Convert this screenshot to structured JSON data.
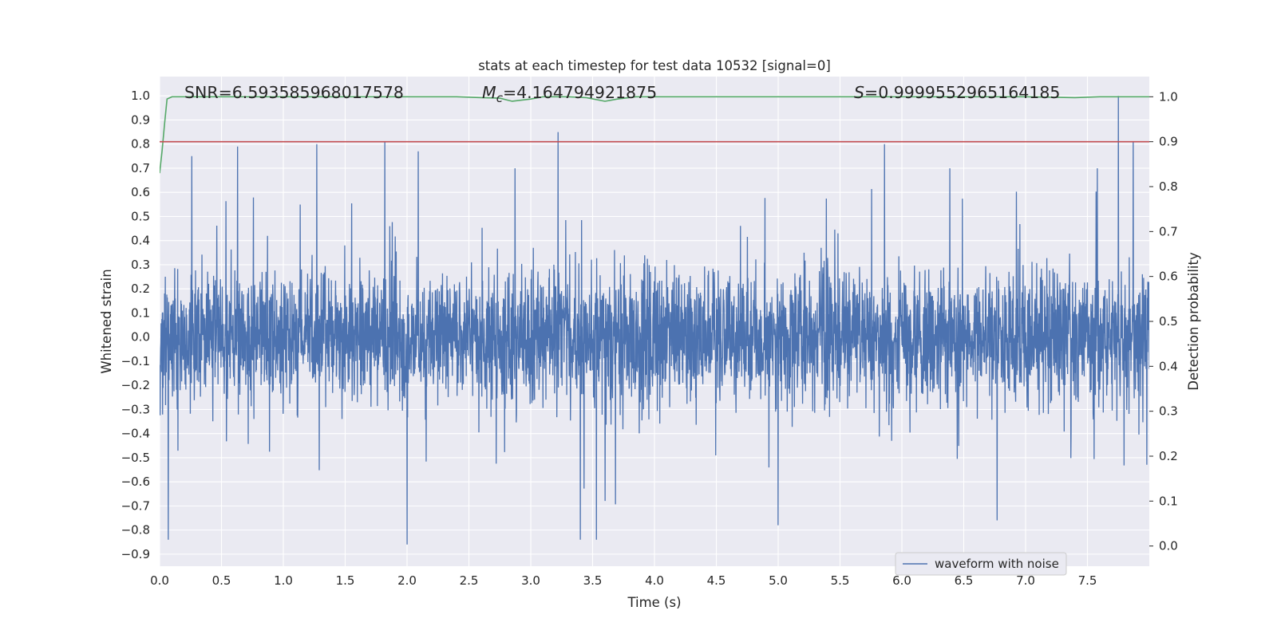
{
  "chart_data": {
    "type": "line",
    "title": "stats at each timestep for test data 10532 [signal=0]",
    "xlabel": "Time (s)",
    "ylabel_left": "Whitened strain",
    "ylabel_right": "Detection probability",
    "xlim": [
      0.0,
      8.0
    ],
    "ylim_left": [
      -0.95,
      1.08
    ],
    "ylim_right": [
      -0.045,
      1.045
    ],
    "xticks": [
      "0.0",
      "0.5",
      "1.0",
      "1.5",
      "2.0",
      "2.5",
      "3.0",
      "3.5",
      "4.0",
      "4.5",
      "5.0",
      "5.5",
      "6.0",
      "6.5",
      "7.0",
      "7.5"
    ],
    "yticks_left": [
      "−0.9",
      "−0.8",
      "−0.7",
      "−0.6",
      "−0.5",
      "−0.4",
      "−0.3",
      "−0.2",
      "−0.1",
      "0.0",
      "0.1",
      "0.2",
      "0.3",
      "0.4",
      "0.5",
      "0.6",
      "0.7",
      "0.8",
      "0.9",
      "1.0"
    ],
    "yticks_right": [
      "0.0",
      "0.1",
      "0.2",
      "0.3",
      "0.4",
      "0.5",
      "0.6",
      "0.7",
      "0.8",
      "0.9",
      "1.0"
    ],
    "grid": true,
    "legend": {
      "position": "lower-right",
      "entries": [
        "waveform with noise"
      ]
    },
    "annotations": {
      "snr": "SNR=6.593585968017578",
      "mc_symbol": "M",
      "mc_sub": "c",
      "mc_value": "=4.164794921875",
      "s_symbol": "S",
      "s_value": "=0.9999552965164185"
    },
    "series": [
      {
        "name": "waveform with noise",
        "axis": "left",
        "color": "#4c72b0",
        "style": "dense noise, core about ±0.25, typical peaks ±0.6",
        "notable_peaks": [
          {
            "x": 0.07,
            "y": -0.84
          },
          {
            "x": 0.26,
            "y": 0.75
          },
          {
            "x": 0.63,
            "y": 0.79
          },
          {
            "x": 1.27,
            "y": 0.8
          },
          {
            "x": 1.82,
            "y": 0.81
          },
          {
            "x": 2.0,
            "y": -0.86
          },
          {
            "x": 2.09,
            "y": 0.77
          },
          {
            "x": 3.22,
            "y": 0.85
          },
          {
            "x": 3.4,
            "y": -0.84
          },
          {
            "x": 3.53,
            "y": -0.84
          },
          {
            "x": 5.0,
            "y": -0.78
          },
          {
            "x": 5.86,
            "y": 0.8
          },
          {
            "x": 6.77,
            "y": -0.76
          },
          {
            "x": 7.75,
            "y": 1.0
          },
          {
            "x": 7.87,
            "y": 0.81
          }
        ]
      },
      {
        "name": "",
        "axis": "right",
        "color": "#55a868",
        "x": [
          0.0,
          0.02,
          0.04,
          0.06,
          0.1,
          0.2,
          1.0,
          2.0,
          2.4,
          2.6,
          2.75,
          2.85,
          3.0,
          3.1,
          3.3,
          3.45,
          3.6,
          3.7,
          3.85,
          4.0,
          5.0,
          6.0,
          7.0,
          7.4,
          7.6,
          8.0
        ],
        "y": [
          0.83,
          0.88,
          0.94,
          0.995,
          1.0,
          1.0,
          1.0,
          1.0,
          1.0,
          0.998,
          0.997,
          0.99,
          0.995,
          1.0,
          1.0,
          0.998,
          0.99,
          0.995,
          1.0,
          1.0,
          1.0,
          1.0,
          1.0,
          0.998,
          1.0,
          1.0
        ]
      },
      {
        "name": "",
        "axis": "right",
        "color": "#c44e52",
        "x": [
          0.0,
          8.0
        ],
        "y": [
          0.9,
          0.9
        ]
      }
    ]
  }
}
